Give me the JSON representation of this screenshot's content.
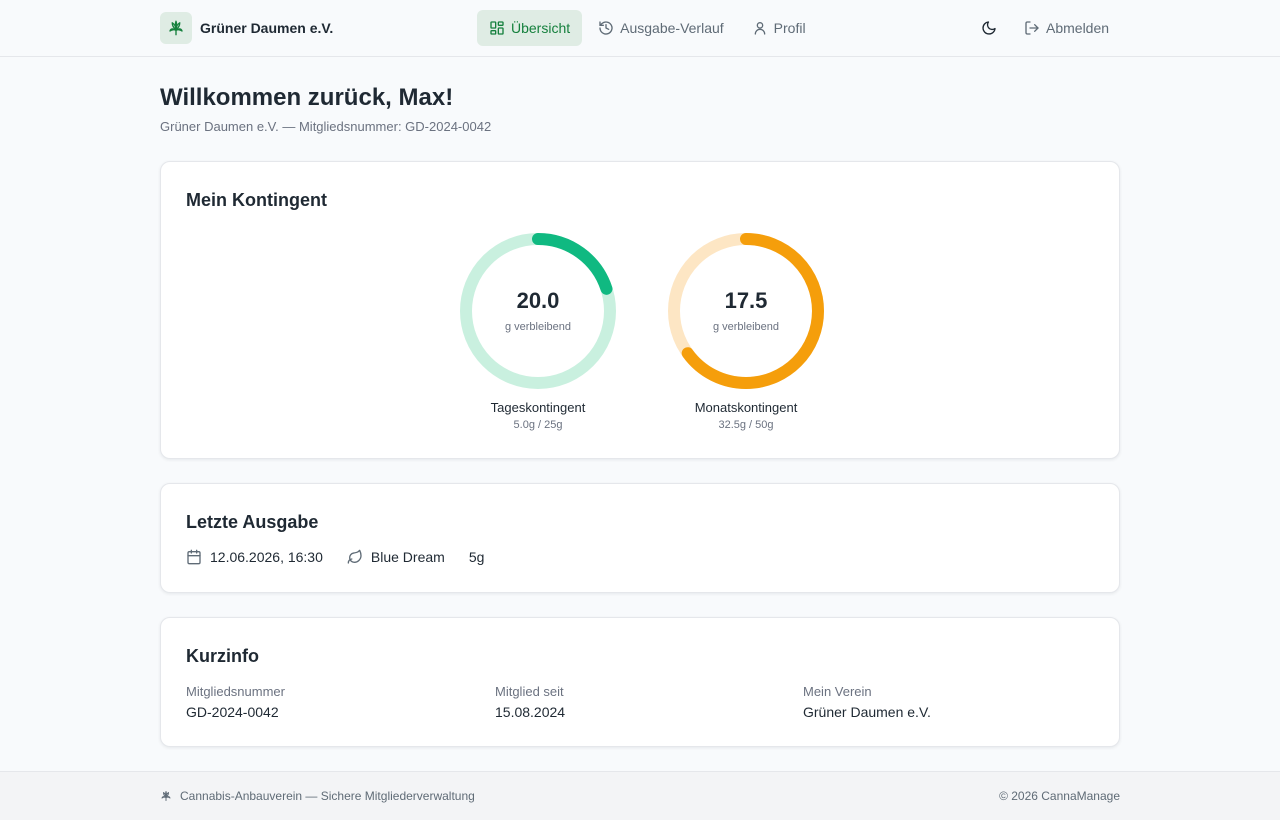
{
  "header": {
    "brand_name": "Grüner Daumen e.V.",
    "nav": [
      {
        "label": "Übersicht",
        "icon": "grid-icon",
        "active": true
      },
      {
        "label": "Ausgabe-Verlauf",
        "icon": "history-icon",
        "active": false
      },
      {
        "label": "Profil",
        "icon": "user-icon",
        "active": false
      }
    ],
    "theme_icon": "moon-icon",
    "logout_label": "Abmelden"
  },
  "welcome": {
    "title": "Willkommen zurück, Max!",
    "subtitle": "Grüner Daumen e.V. — Mitgliedsnummer: GD-2024-0042"
  },
  "kontingent": {
    "title": "Mein Kontingent",
    "daily": {
      "value": "20.0",
      "unit": "g verbleibend",
      "label": "Tageskontingent",
      "detail": "5.0g / 25g",
      "fraction_used": 0.2,
      "color": "#10b981",
      "track_color": "#c9f0df"
    },
    "monthly": {
      "value": "17.5",
      "unit": "g verbleibend",
      "label": "Monatskontingent",
      "detail": "32.5g / 50g",
      "fraction_used": 0.65,
      "color": "#f59e0b",
      "track_color": "#fde6c4"
    }
  },
  "letzte_ausgabe": {
    "title": "Letzte Ausgabe",
    "datetime": "12.06.2026, 16:30",
    "strain": "Blue Dream",
    "amount": "5g"
  },
  "kurzinfo": {
    "title": "Kurzinfo",
    "fields": [
      {
        "label": "Mitgliedsnummer",
        "value": "GD-2024-0042"
      },
      {
        "label": "Mitglied seit",
        "value": "15.08.2024"
      },
      {
        "label": "Mein Verein",
        "value": "Grüner Daumen e.V."
      }
    ]
  },
  "footer": {
    "left_text": "Cannabis-Anbauverein — Sichere Mitgliederverwaltung",
    "right_text": "© 2026 CannaManage"
  },
  "colors": {
    "accent": "#15803d",
    "active_bg": "#dfece4"
  }
}
